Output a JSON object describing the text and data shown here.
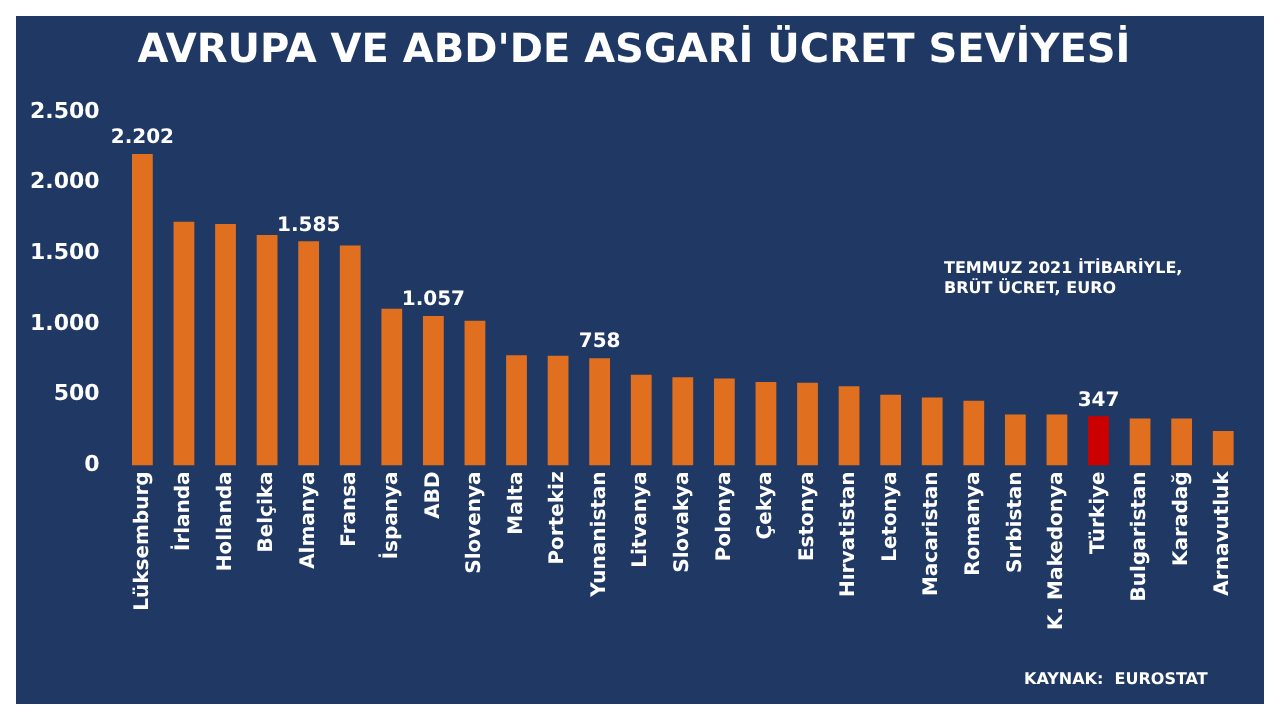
{
  "chart_data": {
    "type": "bar",
    "title": "AVRUPA VE ABD'DE ASGARİ ÜCRET SEVİYESİ",
    "categories": [
      "Lüksemburg",
      "İrlanda",
      "Hollanda",
      "Belçika",
      "Almanya",
      "Fransa",
      "İspanya",
      "ABD",
      "Slovenya",
      "Malta",
      "Portekiz",
      "Yunanistan",
      "Litvanya",
      "Slovakya",
      "Polonya",
      "Çekya",
      "Estonya",
      "Hırvatistan",
      "Letonya",
      "Macaristan",
      "Romanya",
      "Sırbistan",
      "K. Makedonya",
      "Türkiye",
      "Bulgaristan",
      "Karadağ",
      "Arnavutluk"
    ],
    "values": [
      2202,
      1724,
      1708,
      1630,
      1585,
      1555,
      1108,
      1057,
      1024,
      780,
      775,
      758,
      642,
      623,
      614,
      590,
      584,
      560,
      500,
      480,
      458,
      360,
      360,
      347,
      332,
      332,
      243
    ],
    "colors": [
      "#e07020",
      "#e07020",
      "#e07020",
      "#e07020",
      "#e07020",
      "#e07020",
      "#e07020",
      "#e07020",
      "#e07020",
      "#e07020",
      "#e07020",
      "#e07020",
      "#e07020",
      "#e07020",
      "#e07020",
      "#e07020",
      "#e07020",
      "#e07020",
      "#e07020",
      "#e07020",
      "#e07020",
      "#e07020",
      "#e07020",
      "#cc0000",
      "#e07020",
      "#e07020",
      "#e07020"
    ],
    "value_labels": [
      "2.202",
      null,
      null,
      null,
      "1.585",
      null,
      null,
      "1.057",
      null,
      null,
      null,
      "758",
      null,
      null,
      null,
      null,
      null,
      null,
      null,
      null,
      null,
      null,
      null,
      "347",
      null,
      null,
      null
    ],
    "ylim": [
      0,
      2500
    ],
    "yticks": [
      {
        "value": 0,
        "label": "0"
      },
      {
        "value": 500,
        "label": "500"
      },
      {
        "value": 1000,
        "label": "1.000"
      },
      {
        "value": 1500,
        "label": "1.500"
      },
      {
        "value": 2000,
        "label": "2.000"
      },
      {
        "value": 2500,
        "label": "2.500"
      }
    ],
    "grid": false,
    "legend": false,
    "annotations": [
      "TEMMUZ 2021 İTİBARİYLE,\nBRÜT ÜCRET, EURO",
      "KAYNAK:  EUROSTAT"
    ]
  }
}
